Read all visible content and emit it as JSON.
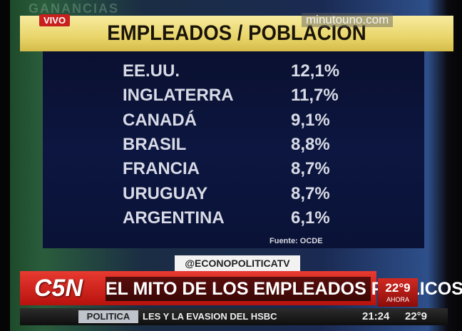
{
  "background": "GANANCIAS",
  "badge": "VIVO",
  "site": "minutouno.com",
  "table": {
    "title": "EMPLEADOS / POBLACION",
    "rows": [
      [
        "EE.UU.",
        "12,1%"
      ],
      [
        "INGLATERRA",
        "11,7%"
      ],
      [
        "CANADÁ",
        "9,1%"
      ],
      [
        "BRASIL",
        "8,8%"
      ],
      [
        "FRANCIA",
        "8,7%"
      ],
      [
        "URUGUAY",
        "8,7%"
      ],
      [
        "ARGENTINA",
        "6,1%"
      ]
    ],
    "source": "Fuente: OCDE"
  },
  "handle": "@ECONOPOLITICATV",
  "channel": "C5N",
  "headline": "EL MITO DE LOS EMPLEADOS PUBLICOS",
  "weather": {
    "temperature": "22°9",
    "label": "AHORA"
  },
  "ticker": {
    "section": "POLITICA",
    "text": "LES Y LA EVASION DEL HSBC",
    "time": "21:24",
    "temperature": "22°9"
  }
}
